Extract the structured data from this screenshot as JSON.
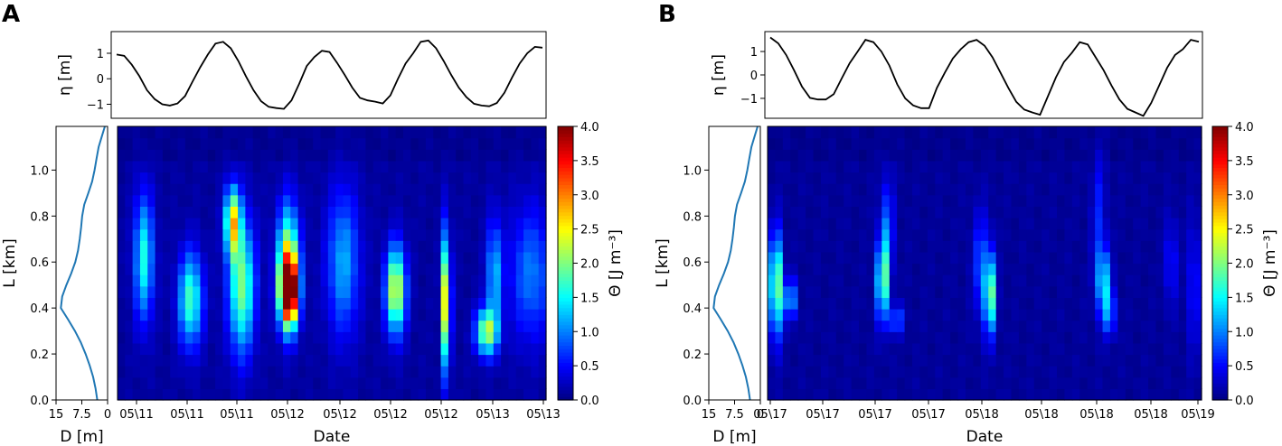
{
  "chart_data": [
    {
      "type": "heatmap",
      "panel_label": "A",
      "colormap": "jet",
      "tide": {
        "ylabel": "η [m]",
        "yticks": [
          -1,
          0,
          1
        ],
        "ylim": [
          -1.55,
          1.85
        ],
        "values": [
          0.95,
          0.9,
          0.55,
          0.1,
          -0.45,
          -0.8,
          -1.0,
          -1.05,
          -0.97,
          -0.68,
          -0.1,
          0.45,
          0.95,
          1.38,
          1.45,
          1.2,
          0.7,
          0.1,
          -0.45,
          -0.88,
          -1.1,
          -1.15,
          -1.18,
          -0.85,
          -0.2,
          0.5,
          0.85,
          1.1,
          1.05,
          0.62,
          0.15,
          -0.35,
          -0.75,
          -0.85,
          -0.9,
          -0.97,
          -0.65,
          0.0,
          0.6,
          1.0,
          1.45,
          1.5,
          1.2,
          0.7,
          0.15,
          -0.35,
          -0.72,
          -0.98,
          -1.05,
          -1.08,
          -0.95,
          -0.55,
          0.05,
          0.6,
          1.0,
          1.25,
          1.22
        ]
      },
      "depth": {
        "xlabel": "D [m]",
        "xticks": [
          "15",
          "7.5",
          "0"
        ],
        "xlim": [
          15,
          0
        ],
        "L": [
          0,
          0.05,
          0.1,
          0.15,
          0.2,
          0.25,
          0.3,
          0.35,
          0.4,
          0.45,
          0.5,
          0.55,
          0.6,
          0.65,
          0.7,
          0.75,
          0.8,
          0.85,
          0.9,
          0.95,
          1.0,
          1.05,
          1.1,
          1.15,
          1.19
        ],
        "D": [
          3.0,
          3.5,
          4.2,
          5.2,
          6.4,
          7.8,
          9.5,
          11.5,
          13.6,
          13.2,
          12.0,
          10.6,
          9.4,
          8.6,
          8.1,
          7.7,
          7.4,
          6.8,
          5.6,
          4.5,
          3.8,
          3.2,
          2.6,
          1.6,
          0.8
        ]
      },
      "heatmap": {
        "ylabel": "L [km]",
        "xlabel": "Date",
        "yticks": [
          "0.0",
          "0.2",
          "0.4",
          "0.6",
          "0.8",
          "1.0"
        ],
        "ylim": [
          0,
          1.19
        ],
        "xticks": [
          "05\\11",
          "05\\11",
          "05\\11",
          "05\\12",
          "05\\12",
          "05\\12",
          "05\\12",
          "05\\13",
          "05\\13"
        ],
        "n_cols": 57,
        "n_rows": 24,
        "background_value": 0.12,
        "blobs": [
          {
            "x": 3,
            "y": 0.62,
            "amp": 1.45,
            "sx": 0.9,
            "sy": 0.19
          },
          {
            "x": 9.2,
            "y": 0.44,
            "amp": 1.65,
            "sx": 1.1,
            "sy": 0.14
          },
          {
            "x": 14.8,
            "y": 0.78,
            "amp": 2.3,
            "sx": 0.7,
            "sy": 0.1
          },
          {
            "x": 16,
            "y": 0.5,
            "amp": 1.9,
            "sx": 1.2,
            "sy": 0.2
          },
          {
            "x": 22.3,
            "y": 0.47,
            "amp": 3.95,
            "sx": 0.8,
            "sy": 0.1
          },
          {
            "x": 22.2,
            "y": 0.6,
            "amp": 2.2,
            "sx": 1.0,
            "sy": 0.17
          },
          {
            "x": 29.5,
            "y": 0.6,
            "amp": 1.05,
            "sx": 1.5,
            "sy": 0.22
          },
          {
            "x": 36.5,
            "y": 0.48,
            "amp": 2.35,
            "sx": 0.9,
            "sy": 0.13
          },
          {
            "x": 43.2,
            "y": 0.43,
            "amp": 2.65,
            "sx": 0.4,
            "sy": 0.2
          },
          {
            "x": 48.6,
            "y": 0.3,
            "amp": 2.05,
            "sx": 1.0,
            "sy": 0.07
          },
          {
            "x": 49.6,
            "y": 0.55,
            "amp": 1.15,
            "sx": 0.7,
            "sy": 0.16
          },
          {
            "x": 54.5,
            "y": 0.55,
            "amp": 0.85,
            "sx": 2.0,
            "sy": 0.2
          }
        ]
      },
      "colorbar": {
        "label": "Θ [J m⁻³]",
        "min": 0,
        "max": 4,
        "ticks": [
          "0.0",
          "0.5",
          "1.0",
          "1.5",
          "2.0",
          "2.5",
          "3.0",
          "3.5",
          "4.0"
        ]
      }
    },
    {
      "type": "heatmap",
      "panel_label": "B",
      "colormap": "jet",
      "tide": {
        "ylabel": "η [m]",
        "yticks": [
          -1,
          0,
          1
        ],
        "ylim": [
          -1.85,
          1.85
        ],
        "values": [
          1.6,
          1.35,
          0.85,
          0.2,
          -0.5,
          -0.98,
          -1.05,
          -1.05,
          -0.82,
          -0.15,
          0.5,
          1.0,
          1.5,
          1.4,
          1.0,
          0.4,
          -0.4,
          -1.0,
          -1.3,
          -1.42,
          -1.42,
          -0.55,
          0.1,
          0.7,
          1.1,
          1.4,
          1.5,
          1.25,
          0.75,
          0.1,
          -0.55,
          -1.15,
          -1.48,
          -1.6,
          -1.7,
          -0.9,
          -0.1,
          0.55,
          0.95,
          1.4,
          1.3,
          0.75,
          0.2,
          -0.45,
          -1.05,
          -1.45,
          -1.6,
          -1.75,
          -1.2,
          -0.45,
          0.3,
          0.85,
          1.1,
          1.5,
          1.42
        ]
      },
      "depth": {
        "xlabel": "D [m]",
        "xticks": [
          "15",
          "7.5",
          "0"
        ],
        "xlim": [
          15,
          0
        ],
        "L": [
          0,
          0.05,
          0.1,
          0.15,
          0.2,
          0.25,
          0.3,
          0.35,
          0.4,
          0.45,
          0.5,
          0.55,
          0.6,
          0.65,
          0.7,
          0.75,
          0.8,
          0.85,
          0.9,
          0.95,
          1.0,
          1.05,
          1.1,
          1.15,
          1.19
        ],
        "D": [
          3.0,
          3.5,
          4.2,
          5.2,
          6.4,
          7.8,
          9.5,
          11.5,
          13.6,
          13.2,
          12.0,
          10.6,
          9.4,
          8.6,
          8.1,
          7.7,
          7.4,
          6.8,
          5.6,
          4.5,
          3.8,
          3.2,
          2.6,
          1.6,
          0.8
        ]
      },
      "heatmap": {
        "ylabel": "L [km]",
        "xlabel": "Date",
        "yticks": [
          "0.0",
          "0.2",
          "0.4",
          "0.6",
          "0.8",
          "1.0"
        ],
        "ylim": [
          0,
          1.19
        ],
        "xticks": [
          "05\\17",
          "05\\17",
          "05\\17",
          "05\\17",
          "05\\18",
          "05\\18",
          "05\\18",
          "05\\18",
          "05\\19"
        ],
        "n_cols": 57,
        "n_rows": 24,
        "background_value": 0.1,
        "blobs": [
          {
            "x": 0.6,
            "y": 0.5,
            "amp": 2.45,
            "sx": 0.5,
            "sy": 0.15
          },
          {
            "x": 2.5,
            "y": 0.44,
            "amp": 1.35,
            "sx": 0.5,
            "sy": 0.06
          },
          {
            "x": 14.6,
            "y": 0.52,
            "amp": 2.05,
            "sx": 0.5,
            "sy": 0.12
          },
          {
            "x": 15.2,
            "y": 0.75,
            "amp": 0.75,
            "sx": 0.6,
            "sy": 0.15
          },
          {
            "x": 16.5,
            "y": 0.35,
            "amp": 0.9,
            "sx": 0.6,
            "sy": 0.04
          },
          {
            "x": 28.7,
            "y": 0.46,
            "amp": 2.0,
            "sx": 0.5,
            "sy": 0.12
          },
          {
            "x": 27.5,
            "y": 0.6,
            "amp": 0.7,
            "sx": 0.7,
            "sy": 0.15
          },
          {
            "x": 43.6,
            "y": 0.52,
            "amp": 1.35,
            "sx": 0.6,
            "sy": 0.1
          },
          {
            "x": 44.4,
            "y": 0.38,
            "amp": 0.85,
            "sx": 0.6,
            "sy": 0.07
          },
          {
            "x": 43.0,
            "y": 0.8,
            "amp": 0.5,
            "sx": 0.6,
            "sy": 0.2
          },
          {
            "x": 52.5,
            "y": 0.6,
            "amp": 0.75,
            "sx": 0.4,
            "sy": 0.13
          },
          {
            "x": 55.5,
            "y": 0.5,
            "amp": 0.5,
            "sx": 0.6,
            "sy": 0.2
          }
        ]
      },
      "colorbar": {
        "label": "Θ [J m⁻³]",
        "min": 0,
        "max": 4,
        "ticks": [
          "0.0",
          "0.5",
          "1.0",
          "1.5",
          "2.0",
          "2.5",
          "3.0",
          "3.5",
          "4.0"
        ]
      }
    }
  ]
}
